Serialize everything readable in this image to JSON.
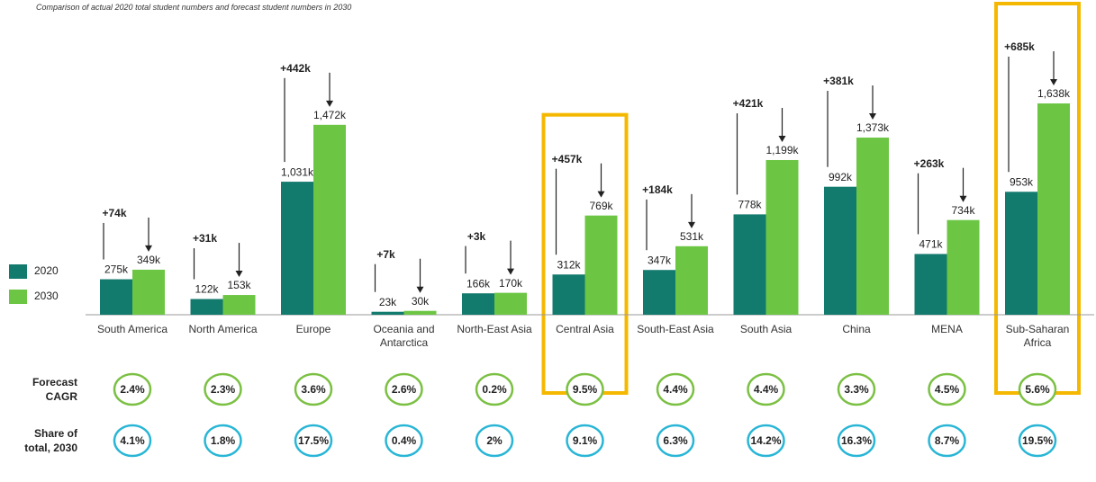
{
  "chart_data": {
    "type": "bar",
    "subtitle": "Comparison of actual 2020 total student numbers and forecast student numbers in 2030",
    "categories": [
      "South America",
      "North America",
      "Europe",
      "Oceania and Antarctica",
      "North-East Asia",
      "Central Asia",
      "South-East Asia",
      "South Asia",
      "China",
      "MENA",
      "Sub-Saharan Africa"
    ],
    "series": [
      {
        "name": "2020",
        "color": "#137a6e",
        "values": [
          275,
          122,
          1031,
          23,
          166,
          312,
          347,
          778,
          992,
          471,
          953
        ],
        "value_labels": [
          "275k",
          "122k",
          "1,031k",
          "23k",
          "166k",
          "312k",
          "347k",
          "778k",
          "992k",
          "471k",
          "953k"
        ]
      },
      {
        "name": "2030",
        "color": "#6cc644",
        "values": [
          349,
          153,
          1472,
          30,
          170,
          769,
          531,
          1199,
          1373,
          734,
          1638
        ],
        "value_labels": [
          "349k",
          "153k",
          "1,472k",
          "30k",
          "170k",
          "769k",
          "531k",
          "1,199k",
          "1,373k",
          "734k",
          "1,638k"
        ]
      }
    ],
    "changes": {
      "color": "#178a7a",
      "values": [
        74,
        31,
        442,
        7,
        3,
        457,
        184,
        421,
        381,
        263,
        685
      ],
      "value_labels": [
        "+74k",
        "+31k",
        "+442k",
        "+7k",
        "+3k",
        "+457k",
        "+184k",
        "+421k",
        "+381k",
        "+263k",
        "+685k"
      ]
    },
    "rows": [
      {
        "name": "Forecast CAGR",
        "color": "#7bc043",
        "values": [
          2.4,
          2.3,
          3.6,
          2.6,
          0.2,
          9.5,
          4.4,
          4.4,
          3.3,
          4.5,
          5.6
        ],
        "value_labels": [
          "2.4%",
          "2.3%",
          "3.6%",
          "2.6%",
          "0.2%",
          "9.5%",
          "4.4%",
          "4.4%",
          "3.3%",
          "4.5%",
          "5.6%"
        ]
      },
      {
        "name": "Share of total, 2030",
        "color": "#29b6d6",
        "values": [
          4.1,
          1.8,
          17.5,
          0.4,
          2,
          9.1,
          6.3,
          14.2,
          16.3,
          8.7,
          19.5
        ],
        "value_labels": [
          "4.1%",
          "1.8%",
          "17.5%",
          "0.4%",
          "2%",
          "9.1%",
          "6.3%",
          "14.2%",
          "16.3%",
          "8.7%",
          "19.5%"
        ]
      }
    ],
    "highlight": [
      5,
      10
    ],
    "highlight_color": "#f5b800"
  }
}
